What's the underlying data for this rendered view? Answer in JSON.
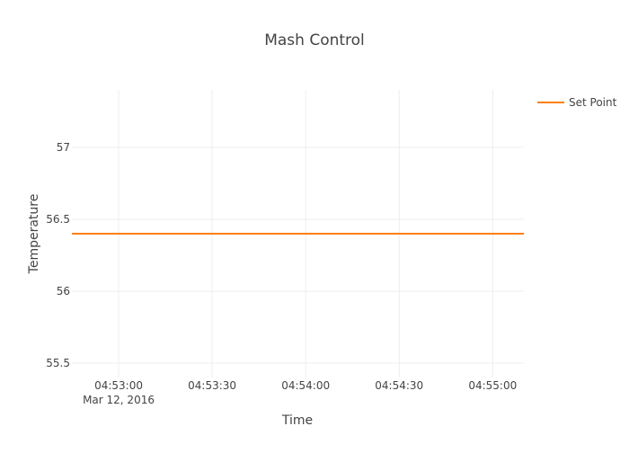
{
  "chart_data": {
    "type": "line",
    "title": "Mash Control",
    "xlabel": "Time",
    "ylabel": "Temperature",
    "x_range": [
      "04:52:45",
      "04:55:10"
    ],
    "x_date_label": "Mar 12, 2016",
    "x_ticks": [
      "04:53:00",
      "04:53:30",
      "04:54:00",
      "04:54:30",
      "04:55:00"
    ],
    "ylim": [
      55.4,
      57.4
    ],
    "y_ticks": [
      55.5,
      56,
      56.5,
      57
    ],
    "y_tick_labels": [
      "55.5",
      "56",
      "56.5",
      "57"
    ],
    "grid": true,
    "legend_position": "top-right",
    "series": [
      {
        "name": "Set Point",
        "color": "#ff7f0e",
        "x": [
          "04:52:45",
          "04:55:10"
        ],
        "y": [
          56.4,
          56.4
        ]
      }
    ]
  }
}
